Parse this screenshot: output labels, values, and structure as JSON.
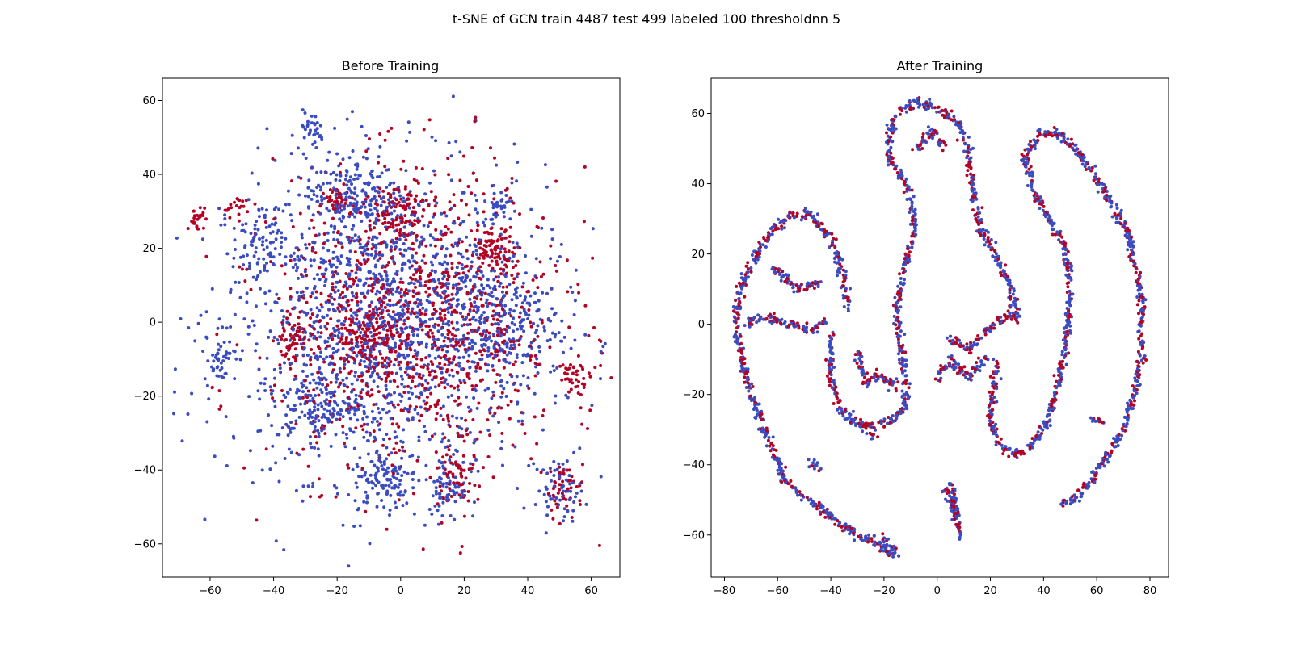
{
  "figure": {
    "title": "t-SNE of GCN train 4487 test 499 labeled 100 thresholdnn 5"
  },
  "colors": {
    "class_a": "#3b4cc0",
    "class_b": "#b40426"
  },
  "chart_data": [
    {
      "type": "scatter",
      "title": "Before Training",
      "xlabel": "",
      "ylabel": "",
      "xlim": [
        -75,
        69
      ],
      "ylim": [
        -69,
        66
      ],
      "xticks": [
        -60,
        -40,
        -20,
        0,
        20,
        40,
        60
      ],
      "yticks": [
        -60,
        -40,
        -20,
        0,
        20,
        40,
        60
      ],
      "grid": false,
      "series": [
        {
          "color": "#3b4cc0",
          "clusters": [
            {
              "cx": -5,
              "cy": 0,
              "rx": 50,
              "ry": 42,
              "n": 1500
            },
            {
              "cx": -45,
              "cy": 20,
              "rx": 8,
              "ry": 10,
              "n": 80
            },
            {
              "cx": -25,
              "cy": -22,
              "rx": 12,
              "ry": 10,
              "n": 120
            },
            {
              "cx": -5,
              "cy": -42,
              "rx": 10,
              "ry": 8,
              "n": 110
            },
            {
              "cx": 15,
              "cy": -45,
              "rx": 6,
              "ry": 9,
              "n": 60
            },
            {
              "cx": 30,
              "cy": 32,
              "rx": 3,
              "ry": 4,
              "n": 25
            },
            {
              "cx": -28,
              "cy": 52,
              "rx": 4,
              "ry": 5,
              "n": 30
            },
            {
              "cx": -57,
              "cy": -10,
              "rx": 5,
              "ry": 6,
              "n": 40
            },
            {
              "cx": 50,
              "cy": -45,
              "rx": 8,
              "ry": 8,
              "n": 60
            },
            {
              "cx": 30,
              "cy": 0,
              "rx": 20,
              "ry": 16,
              "n": 220
            },
            {
              "cx": -15,
              "cy": 35,
              "rx": 15,
              "ry": 10,
              "n": 150
            }
          ]
        },
        {
          "color": "#b40426",
          "clusters": [
            {
              "cx": 5,
              "cy": 0,
              "rx": 45,
              "ry": 40,
              "n": 1100
            },
            {
              "cx": -64,
              "cy": 28,
              "rx": 3,
              "ry": 3,
              "n": 25
            },
            {
              "cx": -52,
              "cy": 31,
              "rx": 4,
              "ry": 3,
              "n": 20
            },
            {
              "cx": -33,
              "cy": -5,
              "rx": 4,
              "ry": 7,
              "n": 60
            },
            {
              "cx": 30,
              "cy": 20,
              "rx": 6,
              "ry": 5,
              "n": 70
            },
            {
              "cx": -20,
              "cy": 33,
              "rx": 4,
              "ry": 3,
              "n": 40
            },
            {
              "cx": 52,
              "cy": -45,
              "rx": 6,
              "ry": 7,
              "n": 50
            },
            {
              "cx": 55,
              "cy": -15,
              "rx": 5,
              "ry": 4,
              "n": 35
            },
            {
              "cx": 18,
              "cy": -40,
              "rx": 6,
              "ry": 10,
              "n": 60
            },
            {
              "cx": -10,
              "cy": -5,
              "rx": 10,
              "ry": 10,
              "n": 130
            },
            {
              "cx": 0,
              "cy": 30,
              "rx": 8,
              "ry": 8,
              "n": 90
            }
          ]
        }
      ]
    },
    {
      "type": "scatter",
      "title": "After Training",
      "xlabel": "",
      "ylabel": "",
      "xlim": [
        -85,
        87
      ],
      "ylim": [
        -72,
        70
      ],
      "xticks": [
        -80,
        -60,
        -40,
        -20,
        0,
        20,
        40,
        60,
        80
      ],
      "yticks": [
        -60,
        -40,
        -20,
        0,
        20,
        40,
        60
      ],
      "grid": false,
      "curves": [
        [
          [
            -58,
            -42
          ],
          [
            -65,
            -30
          ],
          [
            -72,
            -15
          ],
          [
            -76,
            0
          ],
          [
            -74,
            10
          ],
          [
            -68,
            20
          ],
          [
            -62,
            27
          ],
          [
            -55,
            31
          ],
          [
            -47,
            31
          ],
          [
            -40,
            25
          ],
          [
            -36,
            16
          ],
          [
            -34,
            5
          ]
        ],
        [
          [
            -60,
            -42
          ],
          [
            -52,
            -48
          ],
          [
            -40,
            -55
          ],
          [
            -30,
            -60
          ],
          [
            -22,
            -63
          ],
          [
            -15,
            -65
          ]
        ],
        [
          [
            -40,
            -3
          ],
          [
            -40,
            -15
          ],
          [
            -36,
            -25
          ],
          [
            -28,
            -29
          ],
          [
            -18,
            -28
          ],
          [
            -12,
            -24
          ]
        ],
        [
          [
            -12,
            -24
          ],
          [
            -12,
            -15
          ],
          [
            -14,
            -5
          ],
          [
            -15,
            5
          ],
          [
            -12,
            18
          ],
          [
            -8,
            26
          ],
          [
            -10,
            36
          ],
          [
            -18,
            48
          ],
          [
            -18,
            55
          ],
          [
            -14,
            61
          ],
          [
            -8,
            63
          ],
          [
            0,
            62
          ],
          [
            8,
            57
          ],
          [
            12,
            48
          ],
          [
            13,
            40
          ],
          [
            16,
            28
          ],
          [
            23,
            18
          ],
          [
            28,
            10
          ],
          [
            30,
            0
          ]
        ],
        [
          [
            -72,
            0
          ],
          [
            -65,
            2
          ],
          [
            -55,
            0
          ],
          [
            -48,
            -2
          ],
          [
            -42,
            1
          ]
        ],
        [
          [
            -62,
            16
          ],
          [
            -52,
            10
          ],
          [
            -44,
            12
          ]
        ],
        [
          [
            -30,
            -8
          ],
          [
            -27,
            -17
          ],
          [
            -22,
            -15
          ],
          [
            -15,
            -18
          ]
        ],
        [
          [
            4,
            -4
          ],
          [
            12,
            -7
          ],
          [
            18,
            -2
          ],
          [
            25,
            2
          ],
          [
            30,
            3
          ]
        ],
        [
          [
            0,
            -15
          ],
          [
            5,
            -10
          ],
          [
            12,
            -15
          ],
          [
            18,
            -10
          ]
        ],
        [
          [
            2,
            -47
          ],
          [
            5,
            -50
          ],
          [
            7,
            -55
          ],
          [
            9,
            -61
          ]
        ],
        [
          [
            5,
            -45
          ],
          [
            6,
            -50
          ],
          [
            8,
            -55
          ]
        ],
        [
          [
            -20,
            -60
          ],
          [
            -20,
            -65
          ],
          [
            -18,
            -65
          ]
        ],
        [
          [
            -25,
            -32
          ],
          [
            -23,
            -30
          ]
        ],
        [
          [
            22,
            -10
          ],
          [
            21,
            -20
          ],
          [
            20,
            -28
          ],
          [
            24,
            -35
          ],
          [
            30,
            -37
          ],
          [
            38,
            -33
          ],
          [
            44,
            -22
          ],
          [
            48,
            -8
          ],
          [
            50,
            10
          ],
          [
            48,
            22
          ],
          [
            42,
            30
          ],
          [
            36,
            38
          ],
          [
            33,
            47
          ],
          [
            38,
            54
          ],
          [
            46,
            54
          ],
          [
            54,
            48
          ],
          [
            63,
            38
          ],
          [
            72,
            25
          ],
          [
            77,
            8
          ],
          [
            77,
            -8
          ],
          [
            74,
            -20
          ],
          [
            70,
            -30
          ],
          [
            62,
            -40
          ],
          [
            54,
            -48
          ],
          [
            47,
            -52
          ]
        ],
        [
          [
            -48,
            -40
          ],
          [
            -44,
            -41
          ]
        ],
        [
          [
            58,
            -27
          ],
          [
            62,
            -28
          ]
        ],
        [
          [
            -8,
            50
          ],
          [
            -2,
            55
          ],
          [
            3,
            50
          ]
        ]
      ],
      "series": [
        {
          "color": "#3b4cc0"
        },
        {
          "color": "#b40426"
        }
      ]
    }
  ]
}
